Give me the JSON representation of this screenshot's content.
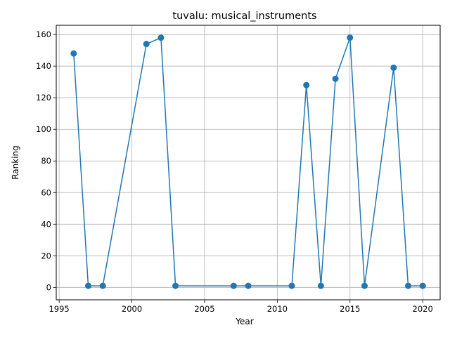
{
  "chart_data": {
    "type": "line",
    "title": "tuvalu: musical_instruments",
    "xlabel": "Year",
    "ylabel": "Ranking",
    "xlim": [
      1994.8,
      2021.2
    ],
    "ylim": [
      -7.85,
      165.85
    ],
    "xticks": [
      1995,
      2000,
      2005,
      2010,
      2015,
      2020
    ],
    "yticks": [
      0,
      20,
      40,
      60,
      80,
      100,
      120,
      140,
      160
    ],
    "grid": true,
    "color": "#1f77b4",
    "series": [
      {
        "x": [
          1996,
          1997,
          1998,
          2001,
          2002,
          2003,
          2007,
          2008,
          2011,
          2012,
          2013,
          2014,
          2015,
          2016,
          2018,
          2019,
          2020
        ],
        "y": [
          148,
          1,
          1,
          154,
          158,
          1,
          1,
          1,
          1,
          128,
          1,
          132,
          158,
          1,
          139,
          1,
          1
        ]
      }
    ]
  }
}
